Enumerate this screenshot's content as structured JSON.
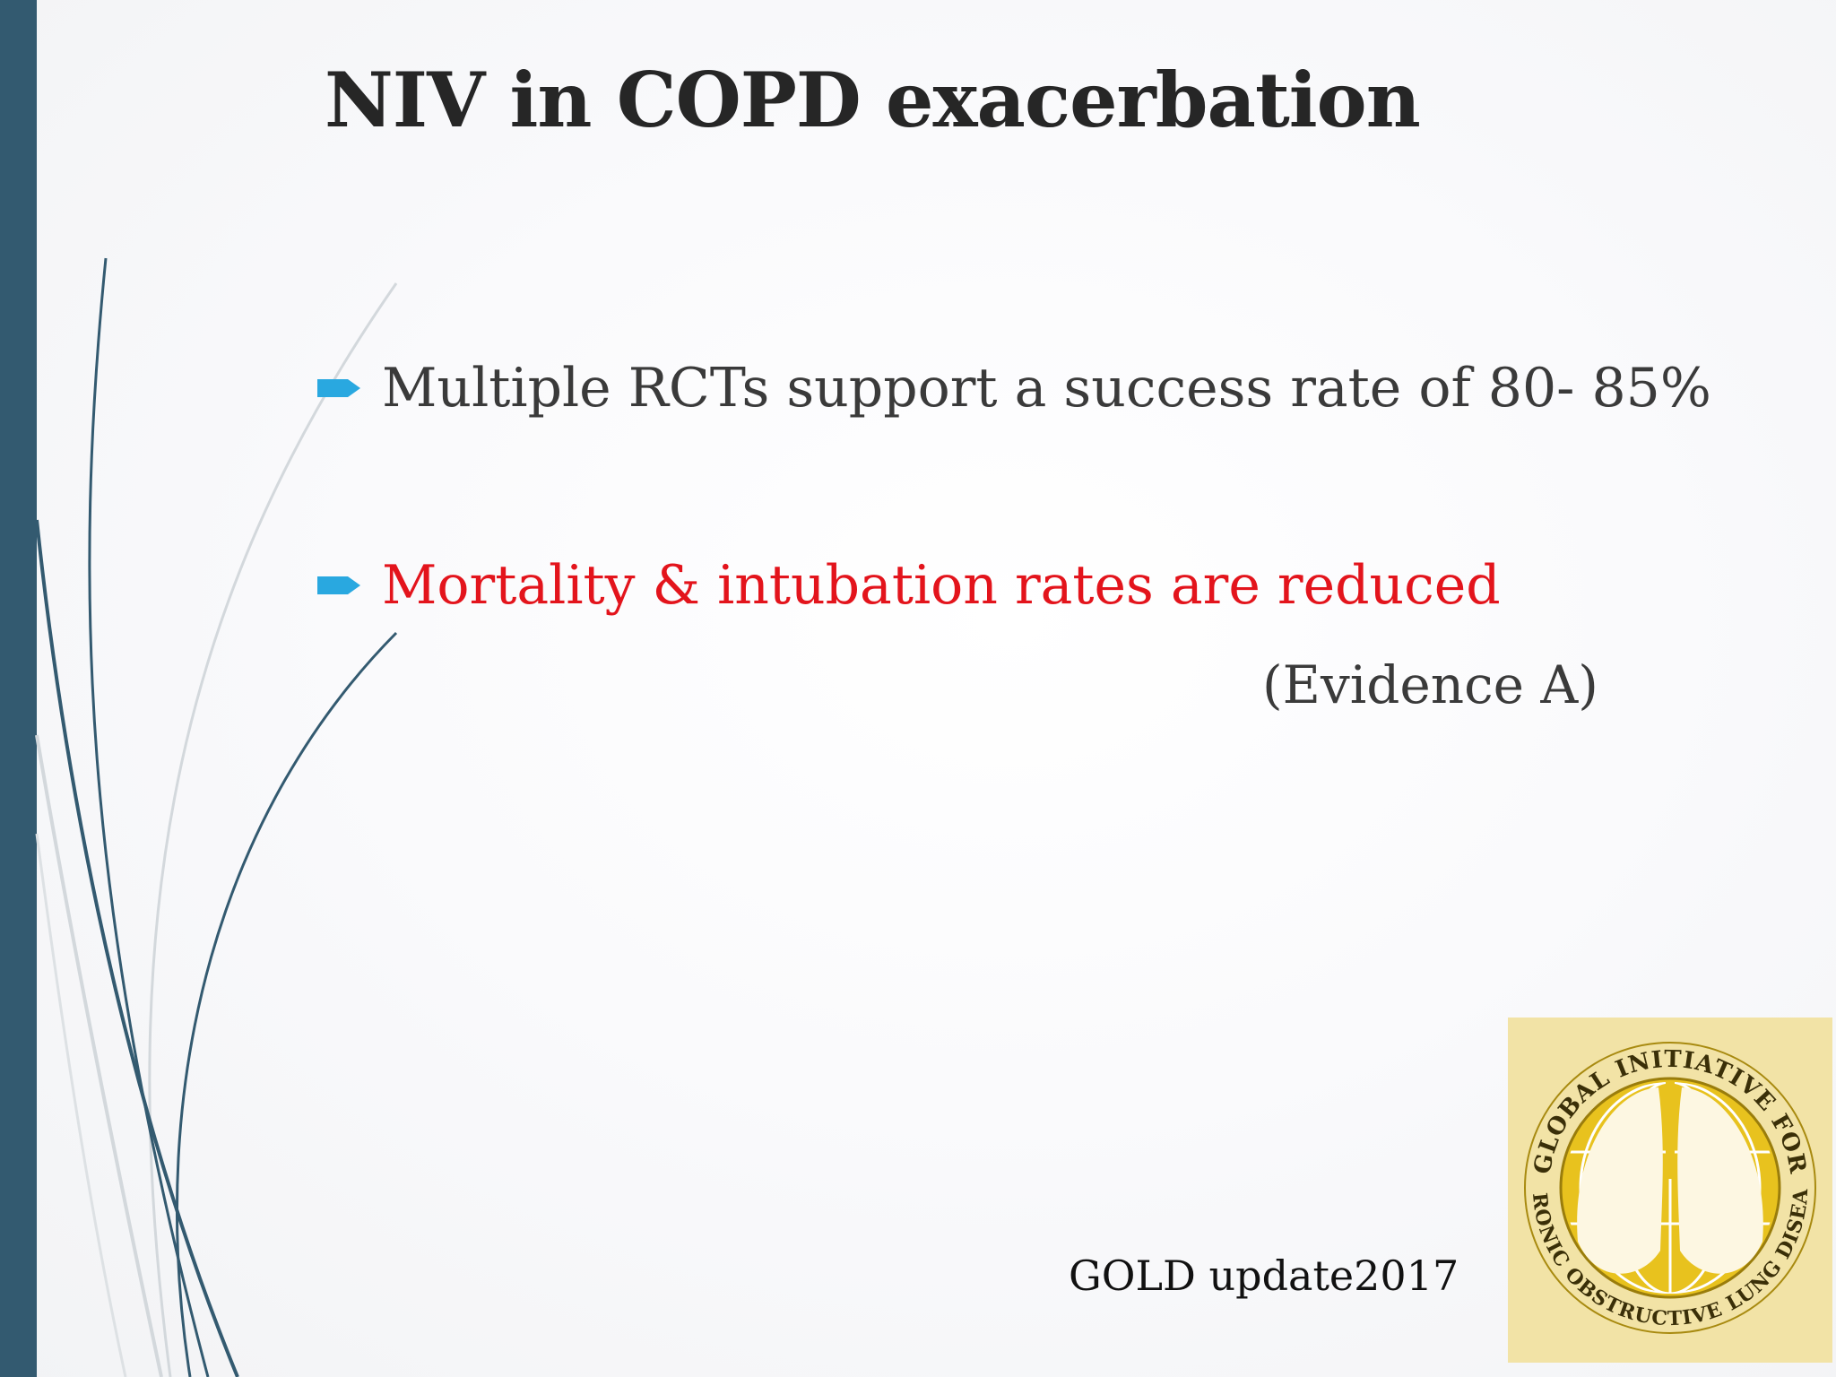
{
  "slide": {
    "title": "NIV in COPD exacerbation",
    "bullets": [
      {
        "text": "Multiple RCTs support a success rate of 80-  85%",
        "color": "#3a3a3a"
      },
      {
        "text": "Mortality & intubation rates are  reduced",
        "color": "#e3141c"
      }
    ],
    "evidence": "(Evidence A)",
    "source": "GOLD update2017",
    "bullet_icon": "arrow-right-icon",
    "logo": {
      "icon": "gold-initiative-logo-icon",
      "top_text": "GLOBAL INITIATIVE FOR",
      "bottom_text": "CHRONIC OBSTRUCTIVE LUNG DISEASE"
    },
    "colors": {
      "accent_bar": "#335a70",
      "bullet_icon": "#29a8e0",
      "logo_gold": "#e8c21e"
    }
  }
}
